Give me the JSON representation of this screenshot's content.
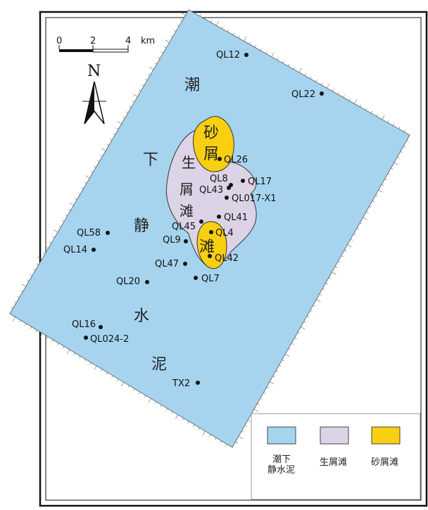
{
  "scale_bar": {
    "ticks": [
      "0",
      "2",
      "4"
    ],
    "unit": "km"
  },
  "north_arrow": {
    "label": "N"
  },
  "colors": {
    "mud": "#a6d4ef",
    "shell_beach": "#ddd3e6",
    "sand_shell_beach": "#f8cf12",
    "frame": "#111111"
  },
  "zone_labels": {
    "mud_chars": [
      "潮",
      "下",
      "静",
      "水",
      "泥"
    ],
    "shell_beach_chars": [
      "生",
      "屑",
      "滩"
    ],
    "sand_upper_chars": [
      "砂",
      "屑"
    ],
    "sand_lower_char": "滩"
  },
  "wells": [
    {
      "id": "QL12"
    },
    {
      "id": "QL22"
    },
    {
      "id": "QL26"
    },
    {
      "id": "QL8"
    },
    {
      "id": "QL17"
    },
    {
      "id": "QL43"
    },
    {
      "id": "QL017-X1"
    },
    {
      "id": "QL41"
    },
    {
      "id": "QL58"
    },
    {
      "id": "QL45"
    },
    {
      "id": "QL4"
    },
    {
      "id": "QL9"
    },
    {
      "id": "QL14"
    },
    {
      "id": "QL42"
    },
    {
      "id": "QL47"
    },
    {
      "id": "QL20"
    },
    {
      "id": "QL7"
    },
    {
      "id": "QL16"
    },
    {
      "id": "QL024-2"
    },
    {
      "id": "TX2"
    }
  ],
  "legend": [
    {
      "line1": "潮下",
      "line2": "静水泥",
      "color_key": "mud"
    },
    {
      "line1": "生屑滩",
      "line2": "",
      "color_key": "shell_beach"
    },
    {
      "line1": "砂屑滩",
      "line2": "",
      "color_key": "sand_shell_beach"
    }
  ]
}
